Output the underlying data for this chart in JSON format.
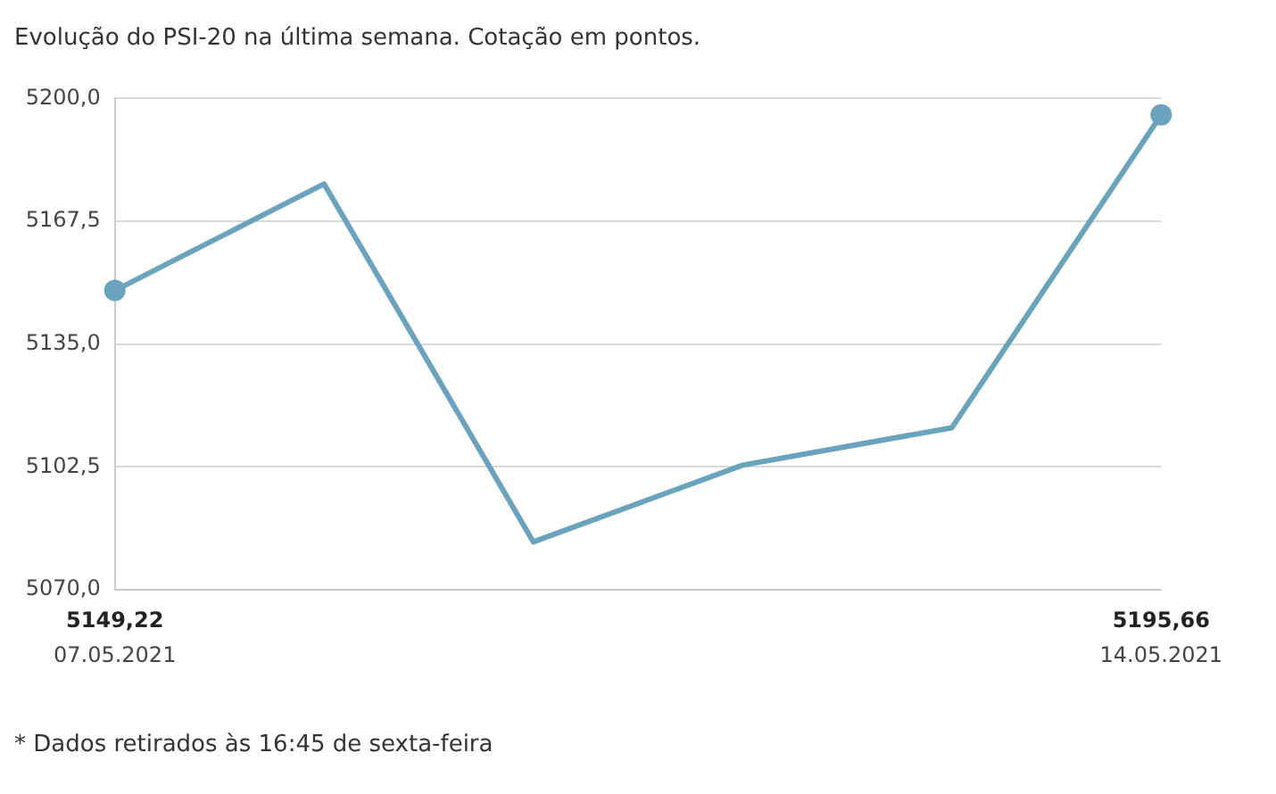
{
  "chart_data": {
    "type": "line",
    "title": "Evolução do PSI-20 na última semana. Cotação em pontos.",
    "categories": [
      "07.05.2021",
      null,
      null,
      null,
      null,
      "14.05.2021"
    ],
    "series": [
      {
        "color": "#6aa3bd",
        "values": [
          5149.22,
          5177.4,
          5082.7,
          5103.0,
          5112.9,
          5195.66
        ],
        "value_labels": [
          "5149,22",
          null,
          null,
          null,
          null,
          "5195,66"
        ]
      },
      {
        "type": "scatter",
        "color": "#6aa3bd",
        "x": [
          "07.05.2021",
          "14.05.2021"
        ],
        "values": [
          5149.22,
          5195.66
        ]
      }
    ],
    "ylim": [
      5070,
      5200
    ],
    "yticks": [
      {
        "value": 5070,
        "label": "5070,0"
      },
      {
        "value": 5102.5,
        "label": "5102,5"
      },
      {
        "value": 5135,
        "label": "5135,0"
      },
      {
        "value": 5167.5,
        "label": "5167,5"
      },
      {
        "value": 5200,
        "label": "5200,0"
      }
    ],
    "grid": "y",
    "legend": false,
    "line_style": "solid",
    "annotations": [
      "* Dados retirados às 16:45 de sexta-feira"
    ]
  }
}
